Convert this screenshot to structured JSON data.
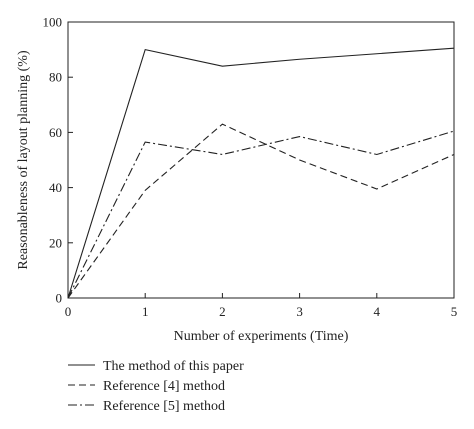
{
  "chart_data": {
    "type": "line",
    "title": "",
    "xlabel": "Number of experiments (Time)",
    "ylabel": "Reasonableness of layout planning (%)",
    "xlim": [
      0,
      5
    ],
    "ylim": [
      0,
      100
    ],
    "x_ticks": [
      "0",
      "1",
      "2",
      "3",
      "4",
      "5"
    ],
    "y_ticks": [
      "0",
      "20",
      "40",
      "60",
      "80",
      "100"
    ],
    "x": [
      0,
      1,
      2,
      3,
      4,
      5
    ],
    "grid": false,
    "legend_position": "bottom",
    "series": [
      {
        "name": "The method of this paper",
        "values": [
          0,
          90,
          84,
          86.5,
          88.5,
          90.5
        ],
        "dash": "solid",
        "color": "#222222"
      },
      {
        "name": "Reference [4] method",
        "values": [
          0,
          39,
          63,
          50,
          39.5,
          52
        ],
        "dash": "dashed",
        "color": "#222222"
      },
      {
        "name": "Reference [5] method",
        "values": [
          0,
          56.5,
          52,
          58.5,
          52,
          60.5
        ],
        "dash": "dashdot",
        "color": "#222222"
      }
    ]
  }
}
